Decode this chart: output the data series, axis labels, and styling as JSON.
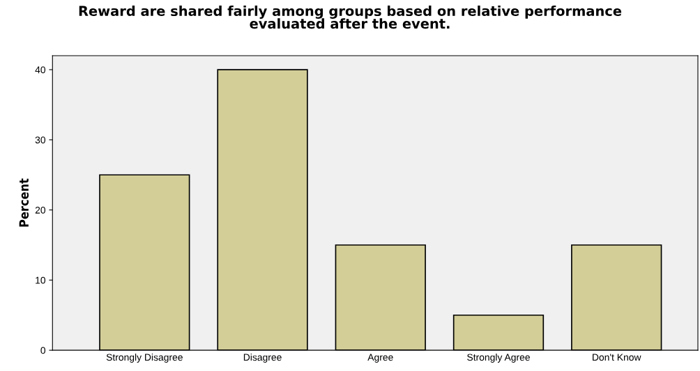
{
  "chart_data": {
    "type": "bar",
    "title": "Reward are shared fairly among groups based on relative performance\nevaluated after the event.",
    "ylabel": "Percent",
    "categories": [
      "Strongly Disagree",
      "Disagree",
      "Agree",
      "Strongly Agree",
      "Don't Know"
    ],
    "values": [
      25,
      40,
      15,
      5,
      15
    ],
    "color": "#d3ce97",
    "ylim": [
      0,
      42
    ],
    "yticks": [
      0,
      10,
      20,
      30,
      40
    ],
    "grid": false
  }
}
